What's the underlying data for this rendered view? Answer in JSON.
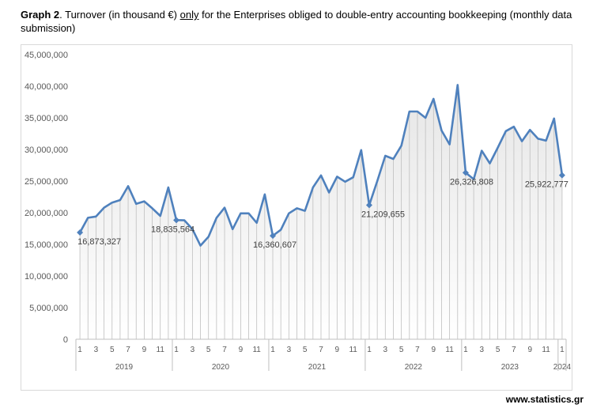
{
  "caption": {
    "prefix": "Graph 2",
    "text_a": ". Turnover (in thousand €) ",
    "underlined": "only",
    "text_b": " for the Enterprises obliged to double-entry accounting bookkeeping (monthly data submission)"
  },
  "footer": "www.statistics.gr",
  "colors": {
    "line": "#4f81bd",
    "marker": "#4f81bd",
    "drop": "#bfbfbf",
    "fill_top": "#e8e8e8"
  },
  "chart_data": {
    "type": "line",
    "title": "Turnover (in thousand €) only for the Enterprises obliged to double-entry accounting bookkeeping (monthly data submission)",
    "ylim": [
      0,
      45000000
    ],
    "yticks": [
      0,
      5000000,
      10000000,
      15000000,
      20000000,
      25000000,
      30000000,
      35000000,
      40000000,
      45000000
    ],
    "ytick_labels": [
      "0",
      "5,000,000",
      "10,000,000",
      "15,000,000",
      "20,000,000",
      "25,000,000",
      "30,000,000",
      "35,000,000",
      "40,000,000",
      "45,000,000"
    ],
    "month_labels": [
      "1",
      "",
      "3",
      "",
      "5",
      "",
      "7",
      "",
      "9",
      "",
      "11",
      ""
    ],
    "years": [
      {
        "label": "2019",
        "months": 12
      },
      {
        "label": "2020",
        "months": 12
      },
      {
        "label": "2021",
        "months": 12
      },
      {
        "label": "2022",
        "months": 12
      },
      {
        "label": "2023",
        "months": 12
      },
      {
        "label": "2024",
        "months": 1
      }
    ],
    "values": [
      16873327,
      19200000,
      19400000,
      20800000,
      21600000,
      22000000,
      24200000,
      21400000,
      21800000,
      20700000,
      19500000,
      24000000,
      18835564,
      18800000,
      17400000,
      14800000,
      16200000,
      19200000,
      20800000,
      17400000,
      19900000,
      19900000,
      18400000,
      22900000,
      16360607,
      17300000,
      19900000,
      20700000,
      20300000,
      24000000,
      25900000,
      23200000,
      25700000,
      24900000,
      25600000,
      29900000,
      21209655,
      25000000,
      29000000,
      28500000,
      30600000,
      36000000,
      36000000,
      35000000,
      38000000,
      33000000,
      30800000,
      40200000,
      26326808,
      25300000,
      29800000,
      27800000,
      30300000,
      32900000,
      33600000,
      31300000,
      33100000,
      31700000,
      31400000,
      34900000,
      25922777
    ],
    "labeled_points": [
      {
        "index": 0,
        "label": "16,873,327"
      },
      {
        "index": 12,
        "label": "18,835,564"
      },
      {
        "index": 24,
        "label": "16,360,607"
      },
      {
        "index": 36,
        "label": "21,209,655"
      },
      {
        "index": 48,
        "label": "26,326,808"
      },
      {
        "index": 60,
        "label": "25,922,777"
      }
    ],
    "xlabel": "",
    "ylabel": ""
  }
}
